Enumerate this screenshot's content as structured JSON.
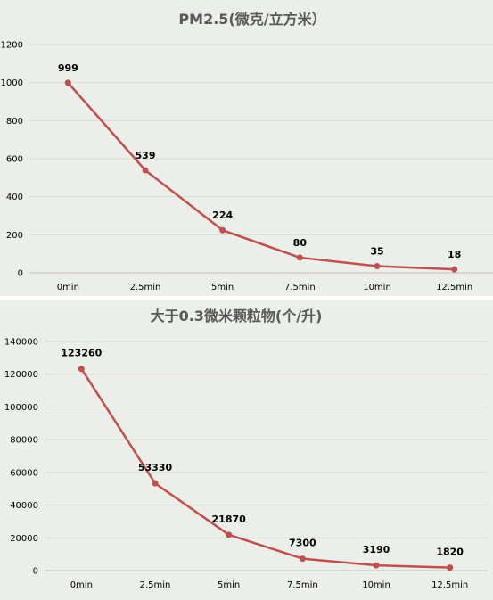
{
  "chart_data": [
    {
      "type": "line",
      "title": "PM2.5(微克/立方米）",
      "categories": [
        "0min",
        "2.5min",
        "5min",
        "7.5min",
        "10min",
        "12.5min"
      ],
      "values": [
        999,
        539,
        224,
        80,
        35,
        18
      ],
      "data_labels": [
        "999",
        "539",
        "224",
        "80",
        "35",
        "18"
      ],
      "yticks": [
        "0",
        "200",
        "400",
        "600",
        "800",
        "1000",
        "1200"
      ],
      "ylim": [
        0,
        1200
      ],
      "grid": true,
      "legend": "none",
      "color": "#c0504d"
    },
    {
      "type": "line",
      "title": "大于0.3微米颗粒物(个/升)",
      "categories": [
        "0min",
        "2.5min",
        "5min",
        "7.5min",
        "10min",
        "12.5min"
      ],
      "values": [
        123260,
        53330,
        21870,
        7300,
        3190,
        1820
      ],
      "data_labels": [
        "123260",
        "53330",
        "21870",
        "7300",
        "3190",
        "1820"
      ],
      "yticks": [
        "0",
        "20000",
        "40000",
        "60000",
        "80000",
        "100000",
        "120000",
        "140000"
      ],
      "ylim": [
        0,
        140000
      ],
      "grid": true,
      "legend": "none",
      "color": "#c0504d"
    }
  ]
}
